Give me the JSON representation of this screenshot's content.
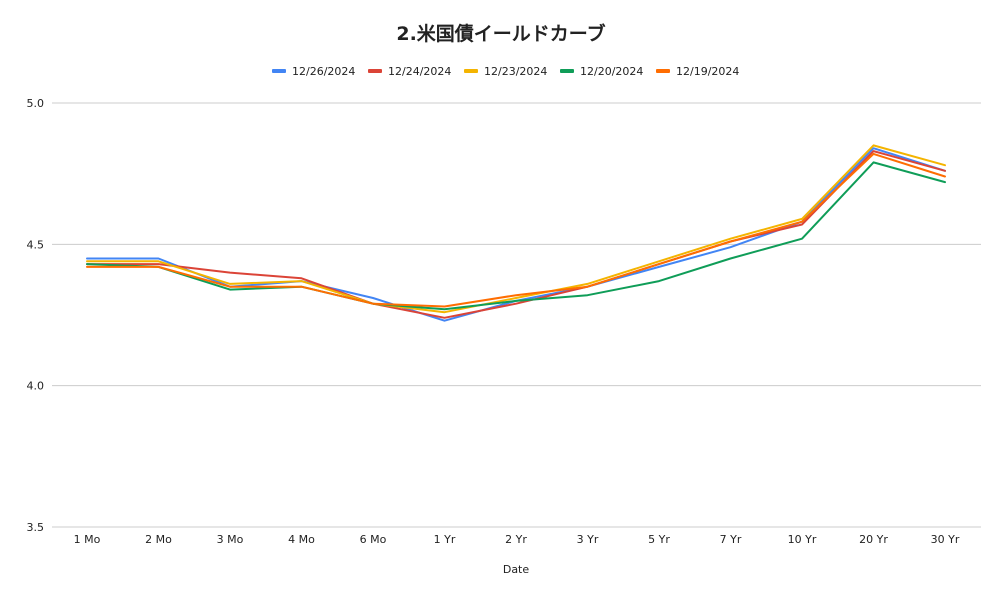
{
  "chart_data": {
    "type": "line",
    "title": "2.米国債イールドカーブ",
    "xlabel": "Date",
    "ylabel": "",
    "categories": [
      "1 Mo",
      "2 Mo",
      "3 Mo",
      "4 Mo",
      "6 Mo",
      "1 Yr",
      "2 Yr",
      "3 Yr",
      "5 Yr",
      "7 Yr",
      "10 Yr",
      "20 Yr",
      "30 Yr"
    ],
    "ylim": [
      3.5,
      5.0
    ],
    "yticks": [
      "3.5",
      "4.0",
      "4.5",
      "5.0"
    ],
    "grid": true,
    "legend_position": "top",
    "series": [
      {
        "name": "12/26/2024",
        "color": "#4285f4",
        "values": [
          4.45,
          4.45,
          4.35,
          4.37,
          4.31,
          4.23,
          4.3,
          4.35,
          4.42,
          4.49,
          4.58,
          4.84,
          4.76
        ]
      },
      {
        "name": "12/24/2024",
        "color": "#db4437",
        "values": [
          4.43,
          4.43,
          4.4,
          4.38,
          4.29,
          4.24,
          4.29,
          4.35,
          4.43,
          4.51,
          4.57,
          4.83,
          4.76
        ]
      },
      {
        "name": "12/23/2024",
        "color": "#f4b400",
        "values": [
          4.44,
          4.44,
          4.36,
          4.37,
          4.29,
          4.26,
          4.31,
          4.36,
          4.44,
          4.52,
          4.59,
          4.85,
          4.78
        ]
      },
      {
        "name": "12/20/2024",
        "color": "#0f9d58",
        "values": [
          4.43,
          4.42,
          4.34,
          4.35,
          4.29,
          4.27,
          4.3,
          4.32,
          4.37,
          4.45,
          4.52,
          4.79,
          4.72
        ]
      },
      {
        "name": "12/19/2024",
        "color": "#ff6d01",
        "values": [
          4.42,
          4.42,
          4.35,
          4.35,
          4.29,
          4.28,
          4.32,
          4.35,
          4.43,
          4.51,
          4.58,
          4.82,
          4.74
        ]
      }
    ]
  }
}
